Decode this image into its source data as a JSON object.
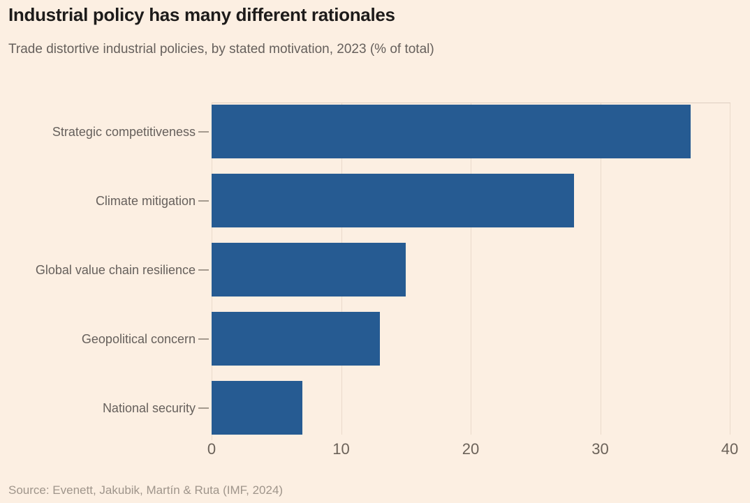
{
  "header": {
    "title": "Industrial policy has many different rationales",
    "subtitle": "Trade distortive industrial policies, by stated motivation, 2023 (% of total)"
  },
  "source": {
    "text": "Source: Evenett, Jakubik, Martín & Ruta (IMF, 2024)"
  },
  "theme": {
    "background": "#FCEFE2",
    "bar_color": "#265B92",
    "title_color": "#1D1B1A",
    "subtitle_color": "#66605C",
    "axis_text_color": "#6B6259",
    "gridline_color": "#EADACB",
    "plot_top_rule_color": "#DECFC2",
    "category_tick_color": "#A59A8E",
    "source_color": "#9F958B"
  },
  "chart_data": {
    "type": "bar",
    "orientation": "horizontal",
    "title": "Industrial policy has many different rationales",
    "subtitle": "Trade distortive industrial policies, by stated motivation, 2023 (% of total)",
    "source": "Source: Evenett, Jakubik, Martín & Ruta (IMF, 2024)",
    "categories": [
      "Strategic competitiveness",
      "Climate mitigation",
      "Global value chain resilience",
      "Geopolitical concern",
      "National security"
    ],
    "values": [
      37,
      28,
      15,
      13,
      7
    ],
    "xlabel": "% of total",
    "ylabel": "",
    "xlim": [
      0,
      40
    ],
    "xticks": [
      0,
      10,
      20,
      30,
      40
    ],
    "grid": "vertical-only",
    "legend": false
  }
}
